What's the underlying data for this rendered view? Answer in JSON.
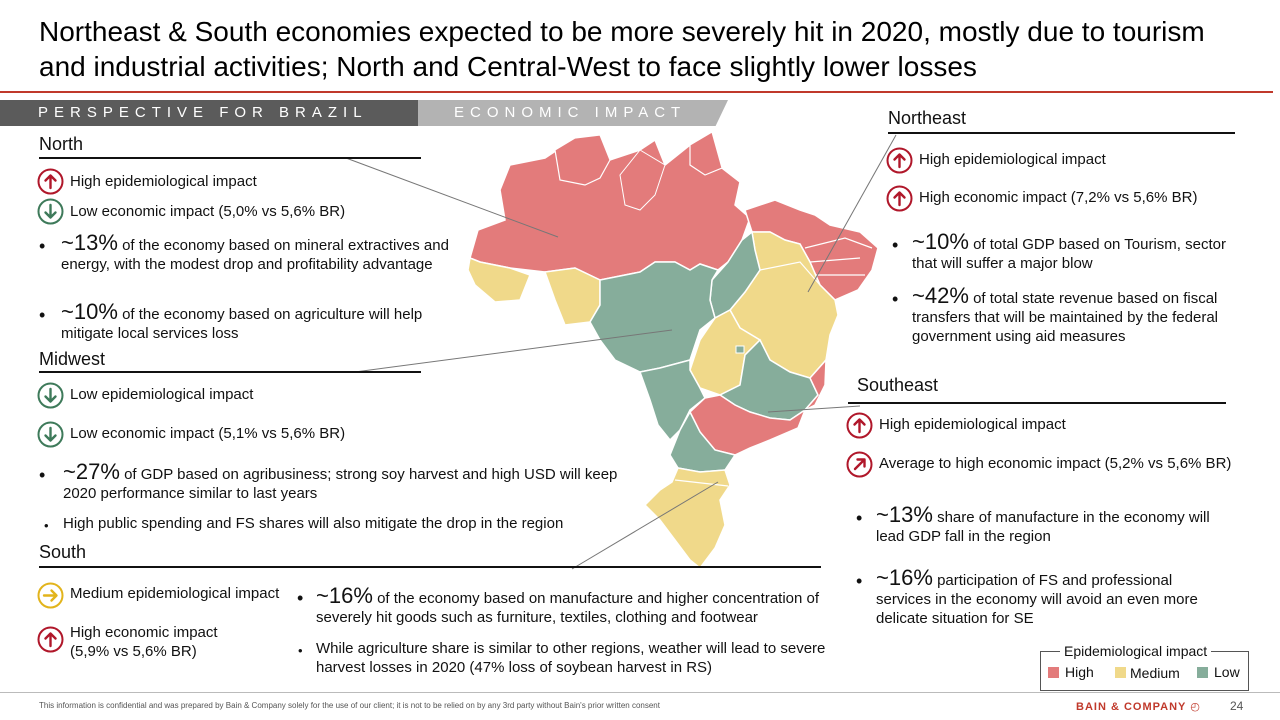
{
  "title": "Northeast & South economies expected to be more severely hit in 2020, mostly due to tourism and industrial activities; North and Central-West to face slightly lower losses",
  "banner": {
    "perspective": "PERSPECTIVE FOR BRAZIL",
    "economic": "ECONOMIC IMPACT"
  },
  "colors": {
    "high": "#e37b7b",
    "medium": "#f0d98a",
    "low": "#86ad9b",
    "arrow_red": "#b0172a",
    "arrow_green": "#3e7a5a",
    "arrow_yellow": "#e2b41c"
  },
  "north": {
    "name": "North",
    "epi": "High epidemiological impact",
    "eco": "Low economic impact (5,0% vs 5,6% BR)",
    "b1_big": "~13%",
    "b1_text": "of the economy based on mineral extractives and energy, with the modest drop and profitability advantage",
    "b2_big": "~10%",
    "b2_text": "of the economy based on agriculture will help mitigate local services loss"
  },
  "midwest": {
    "name": "Midwest",
    "epi": "Low epidemiological impact",
    "eco": "Low economic impact (5,1% vs 5,6% BR)",
    "b1_big": "~27%",
    "b1_text": "of GDP based on agribusiness; strong soy harvest and high USD will keep 2020 performance similar to last years",
    "b2_text": "High public spending and FS shares will also mitigate the drop in the region"
  },
  "south": {
    "name": "South",
    "epi": "Medium epidemiological impact",
    "eco": "High economic impact (5,9% vs 5,6% BR)",
    "b1_big": "~16%",
    "b1_text": "of the economy based on manufacture and higher concentration of severely hit goods such as furniture, textiles, clothing and footwear",
    "b2_text": "While agriculture share is similar to other regions, weather will lead to severe harvest losses in 2020 (47% loss of soybean harvest in RS)"
  },
  "northeast": {
    "name": "Northeast",
    "epi": "High epidemiological impact",
    "eco": "High economic impact (7,2% vs 5,6% BR)",
    "b1_big": "~10%",
    "b1_text": "of total GDP based on Tourism, sector that will suffer a major blow",
    "b2_big": "~42%",
    "b2_text": "of total state revenue based on fiscal transfers that will be maintained by the federal government using aid measures"
  },
  "southeast": {
    "name": "Southeast",
    "epi": "High epidemiological impact",
    "eco": "Average to high economic impact (5,2% vs 5,6% BR)",
    "b1_big": "~13%",
    "b1_text": "share of manufacture in the economy will lead GDP fall in the region",
    "b2_big": "~16%",
    "b2_text": "participation of FS and professional services in the economy will avoid an even more delicate situation for SE"
  },
  "legend": {
    "title": "Epidemiological impact",
    "high": "High",
    "medium": "Medium",
    "low": "Low"
  },
  "footer": "This information is confidential and was prepared by Bain & Company solely for the use of our client; it is not to be relied on by any 3rd party without Bain's prior written consent",
  "brand": "BAIN & COMPANY",
  "page": "24"
}
